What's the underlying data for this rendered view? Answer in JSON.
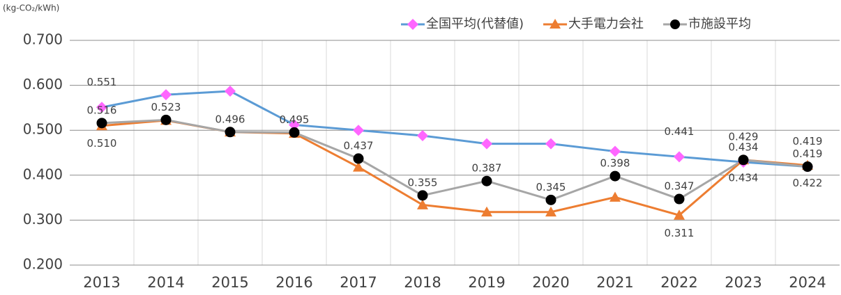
{
  "chart_data": {
    "type": "line",
    "y_label": "(kg-CO₂/kWh)",
    "categories": [
      "2013",
      "2014",
      "2015",
      "2016",
      "2017",
      "2018",
      "2019",
      "2020",
      "2021",
      "2022",
      "2023",
      "2024"
    ],
    "series": [
      {
        "name": "全国平均(代替値)",
        "color": "#5b9bd5",
        "marker": "diamond",
        "marker_color": "#ff66ff",
        "values": [
          0.551,
          0.579,
          0.587,
          0.512,
          0.5,
          0.488,
          0.47,
          0.47,
          0.453,
          0.441,
          0.429,
          0.419
        ],
        "value_labels": [
          "0.551",
          null,
          null,
          null,
          null,
          null,
          null,
          null,
          null,
          "0.441",
          "0.429",
          "0.419"
        ]
      },
      {
        "name": "大手電力会社",
        "color": "#ed7d31",
        "marker": "triangle",
        "marker_color": "#ed7d31",
        "values": [
          0.51,
          0.522,
          0.496,
          0.493,
          0.418,
          0.334,
          0.318,
          0.318,
          0.351,
          0.311,
          0.434,
          0.422
        ],
        "value_labels": [
          "0.510",
          null,
          null,
          null,
          null,
          null,
          null,
          null,
          null,
          "0.311",
          "0.434",
          "0.422"
        ]
      },
      {
        "name": "市施設平均",
        "color": "#a6a6a6",
        "marker": "circle",
        "marker_color": "#000000",
        "values": [
          0.516,
          0.523,
          0.496,
          0.495,
          0.437,
          0.355,
          0.387,
          0.345,
          0.398,
          0.347,
          0.434,
          0.419
        ],
        "value_labels": [
          "0.516",
          "0.523",
          "0.496",
          "0.495",
          "0.437",
          "0.355",
          "0.387",
          "0.345",
          "0.398",
          "0.347",
          "0.434",
          "0.419"
        ]
      }
    ],
    "ylim": [
      0.2,
      0.7
    ],
    "yticks": [
      {
        "value": 0.2,
        "label": "0.200"
      },
      {
        "value": 0.3,
        "label": "0.300"
      },
      {
        "value": 0.4,
        "label": "0.400"
      },
      {
        "value": 0.5,
        "label": "0.500"
      },
      {
        "value": 0.6,
        "label": "0.600"
      },
      {
        "value": 0.7,
        "label": "0.700"
      }
    ],
    "grid": true
  }
}
